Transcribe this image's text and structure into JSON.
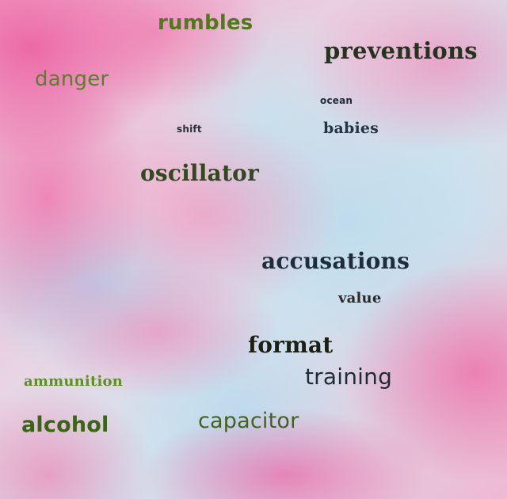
{
  "words": {
    "rumbles": {
      "text": "rumbles",
      "color": "#4e7a1c"
    },
    "preventions": {
      "text": "preventions",
      "color": "#26331f"
    },
    "danger": {
      "text": "danger",
      "color": "#5b7f2e"
    },
    "ocean": {
      "text": "ocean",
      "color": "#1f2a36"
    },
    "shift": {
      "text": "shift",
      "color": "#2a2f3a"
    },
    "babies": {
      "text": "babies",
      "color": "#233445"
    },
    "oscillator": {
      "text": "oscillator",
      "color": "#2f4a1d"
    },
    "accusations": {
      "text": "accusations",
      "color": "#1e2d3c"
    },
    "value": {
      "text": "value",
      "color": "#2a2a2a"
    },
    "format": {
      "text": "format",
      "color": "#1c1f14"
    },
    "training": {
      "text": "training",
      "color": "#1f2b36"
    },
    "ammunition": {
      "text": "ammunition",
      "color": "#5e8f26"
    },
    "alcohol": {
      "text": "alcohol",
      "color": "#3c6418"
    },
    "capacitor": {
      "text": "capacitor",
      "color": "#3f6420"
    }
  }
}
